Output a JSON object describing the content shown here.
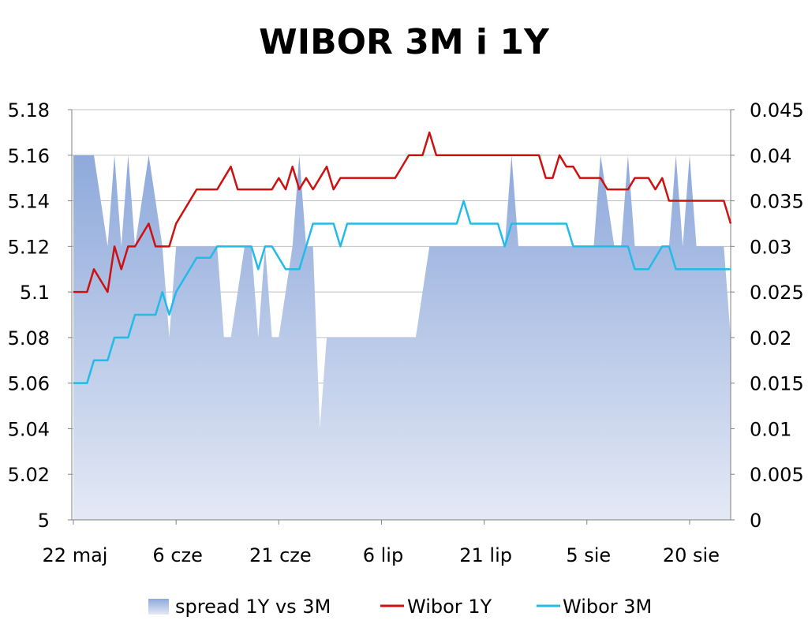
{
  "chart_data": {
    "type": "line",
    "title": "WIBOR 3M i 1Y",
    "x_tick_labels": [
      "22 maj",
      "6 cze",
      "21 cze",
      "6 lip",
      "21 lip",
      "5 sie",
      "20 sie"
    ],
    "y_left_tick_labels": [
      "5",
      "5.02",
      "5.04",
      "5.06",
      "5.08",
      "5.1",
      "5.12",
      "5.14",
      "5.16",
      "5.18"
    ],
    "y_right_tick_labels": [
      "0",
      "0.005",
      "0.01",
      "0.015",
      "0.02",
      "0.025",
      "0.03",
      "0.035",
      "0.04",
      "0.045"
    ],
    "ylim_left": [
      5,
      5.18
    ],
    "ylim_right": [
      0,
      0.045
    ],
    "grid": "horizontal",
    "legend_position": "bottom",
    "series": [
      {
        "name": "spread 1Y vs 3M",
        "kind": "area",
        "axis": "right",
        "color": "#8ea9db",
        "color_light": "#e4e9f5",
        "values": [
          0.04,
          0.04,
          0.04,
          0.04,
          0.035,
          0.03,
          0.04,
          0.03,
          0.04,
          0.03,
          0.035,
          0.04,
          0.035,
          0.03,
          0.02,
          0.03,
          0.03,
          0.03,
          0.03,
          0.03,
          0.03,
          0.03,
          0.02,
          0.02,
          0.025,
          0.03,
          0.03,
          0.02,
          0.03,
          0.02,
          0.02,
          0.025,
          0.03,
          0.04,
          0.03,
          0.03,
          0.01,
          0.02,
          0.02,
          0.02,
          0.02,
          0.02,
          0.02,
          0.02,
          0.02,
          0.02,
          0.02,
          0.02,
          0.02,
          0.02,
          0.02,
          0.025,
          0.03,
          0.03,
          0.03,
          0.03,
          0.03,
          0.03,
          0.03,
          0.03,
          0.03,
          0.03,
          0.03,
          0.03,
          0.04,
          0.03,
          0.03,
          0.03,
          0.03,
          0.03,
          0.03,
          0.03,
          0.03,
          0.03,
          0.03,
          0.03,
          0.03,
          0.04,
          0.035,
          0.03,
          0.03,
          0.04,
          0.03,
          0.03,
          0.03,
          0.03,
          0.03,
          0.03,
          0.04,
          0.03,
          0.04,
          0.03,
          0.03,
          0.03,
          0.03,
          0.03,
          0.02
        ]
      },
      {
        "name": "Wibor 1Y",
        "kind": "line",
        "axis": "left",
        "color": "#cc1111",
        "values": [
          5.1,
          5.1,
          5.1,
          5.11,
          5.105,
          5.1,
          5.12,
          5.11,
          5.12,
          5.12,
          5.125,
          5.13,
          5.12,
          5.12,
          5.12,
          5.13,
          5.135,
          5.14,
          5.145,
          5.145,
          5.145,
          5.145,
          5.15,
          5.155,
          5.145,
          5.145,
          5.145,
          5.145,
          5.145,
          5.145,
          5.15,
          5.145,
          5.155,
          5.145,
          5.15,
          5.145,
          5.15,
          5.155,
          5.145,
          5.15,
          5.15,
          5.15,
          5.15,
          5.15,
          5.15,
          5.15,
          5.15,
          5.15,
          5.155,
          5.16,
          5.16,
          5.16,
          5.17,
          5.16,
          5.16,
          5.16,
          5.16,
          5.16,
          5.16,
          5.16,
          5.16,
          5.16,
          5.16,
          5.16,
          5.16,
          5.16,
          5.16,
          5.16,
          5.16,
          5.15,
          5.15,
          5.16,
          5.155,
          5.155,
          5.15,
          5.15,
          5.15,
          5.15,
          5.145,
          5.145,
          5.145,
          5.145,
          5.15,
          5.15,
          5.15,
          5.145,
          5.15,
          5.14,
          5.14,
          5.14,
          5.14,
          5.14,
          5.14,
          5.14,
          5.14,
          5.14,
          5.13
        ]
      },
      {
        "name": "Wibor 3M",
        "kind": "line",
        "axis": "left",
        "color": "#22bbe8",
        "values": [
          5.06,
          5.06,
          5.06,
          5.07,
          5.07,
          5.07,
          5.08,
          5.08,
          5.08,
          5.09,
          5.09,
          5.09,
          5.09,
          5.1,
          5.09,
          5.1,
          5.105,
          5.11,
          5.115,
          5.115,
          5.115,
          5.12,
          5.12,
          5.12,
          5.12,
          5.12,
          5.12,
          5.11,
          5.12,
          5.12,
          5.115,
          5.11,
          5.11,
          5.11,
          5.12,
          5.13,
          5.13,
          5.13,
          5.13,
          5.12,
          5.13,
          5.13,
          5.13,
          5.13,
          5.13,
          5.13,
          5.13,
          5.13,
          5.13,
          5.13,
          5.13,
          5.13,
          5.13,
          5.13,
          5.13,
          5.13,
          5.13,
          5.14,
          5.13,
          5.13,
          5.13,
          5.13,
          5.13,
          5.12,
          5.13,
          5.13,
          5.13,
          5.13,
          5.13,
          5.13,
          5.13,
          5.13,
          5.13,
          5.12,
          5.12,
          5.12,
          5.12,
          5.12,
          5.12,
          5.12,
          5.12,
          5.12,
          5.11,
          5.11,
          5.11,
          5.115,
          5.12,
          5.12,
          5.11,
          5.11,
          5.11,
          5.11,
          5.11,
          5.11,
          5.11,
          5.11,
          5.11
        ]
      }
    ]
  }
}
